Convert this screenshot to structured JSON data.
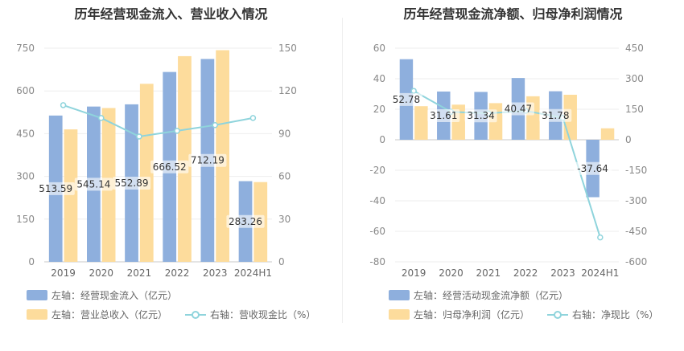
{
  "colors": {
    "bar1": "#8eafdd",
    "bar2": "#fddc9c",
    "line": "#8fd4dc",
    "axis_text": "#888888",
    "grid": "#eeeeee"
  },
  "chart_data": [
    {
      "type": "bar",
      "title": "历年经营现金流入、营业收入情况",
      "categories": [
        "2019",
        "2020",
        "2021",
        "2022",
        "2023",
        "2024H1"
      ],
      "left_axis": {
        "min": 0,
        "max": 750,
        "ticks": [
          0,
          150,
          300,
          450,
          600,
          750
        ]
      },
      "right_axis": {
        "min": 0,
        "max": 150,
        "ticks": [
          0,
          30,
          60,
          90,
          120,
          150
        ]
      },
      "series": [
        {
          "name": "左轴：经营现金流入（亿元）",
          "axis": "left",
          "kind": "bar",
          "values": [
            513.59,
            545.14,
            552.89,
            666.52,
            712.19,
            283.26
          ],
          "labels": [
            "513.59",
            "545.14",
            "552.89",
            "666.52",
            "712.19",
            "283.26"
          ]
        },
        {
          "name": "左轴：营业总收入（亿元）",
          "axis": "left",
          "kind": "bar",
          "values": [
            465,
            540,
            625,
            722,
            743,
            280
          ]
        },
        {
          "name": "右轴：营收现金比（%）",
          "axis": "right",
          "kind": "line",
          "values": [
            110,
            101,
            88,
            92,
            96,
            101
          ]
        }
      ],
      "legend": [
        {
          "label": "左轴：经营现金流入（亿元）",
          "kind": "bar",
          "color": "#8eafdd"
        },
        {
          "label": "左轴：营业总收入（亿元）",
          "kind": "bar",
          "color": "#fddc9c"
        },
        {
          "label": "右轴：营收现金比（%）",
          "kind": "line",
          "color": "#8fd4dc"
        }
      ]
    },
    {
      "type": "bar",
      "title": "历年经营现金流净额、归母净利润情况",
      "categories": [
        "2019",
        "2020",
        "2021",
        "2022",
        "2023",
        "2024H1"
      ],
      "left_axis": {
        "min": -80,
        "max": 60,
        "ticks": [
          -80,
          -60,
          -40,
          -20,
          0,
          20,
          40,
          60
        ]
      },
      "right_axis": {
        "min": -600,
        "max": 450,
        "ticks": [
          -600,
          -450,
          -300,
          -150,
          0,
          150,
          300,
          450
        ]
      },
      "series": [
        {
          "name": "左轴：经营活动现金流净额（亿元）",
          "axis": "left",
          "kind": "bar",
          "values": [
            52.78,
            31.61,
            31.34,
            40.47,
            31.78,
            -37.64
          ],
          "labels": [
            "52.78",
            "31.61",
            "31.34",
            "40.47",
            "31.78",
            "-37.64"
          ]
        },
        {
          "name": "左轴：归母净利润（亿元）",
          "axis": "left",
          "kind": "bar",
          "values": [
            22,
            23,
            24,
            28.5,
            29.5,
            7.5
          ]
        },
        {
          "name": "右轴：净现比（%）",
          "axis": "right",
          "kind": "line",
          "values": [
            240,
            137,
            130,
            142,
            108,
            -480
          ]
        }
      ],
      "legend": [
        {
          "label": "左轴：经营活动现金流净额（亿元）",
          "kind": "bar",
          "color": "#8eafdd"
        },
        {
          "label": "左轴：归母净利润（亿元）",
          "kind": "bar",
          "color": "#fddc9c"
        },
        {
          "label": "右轴：净现比（%）",
          "kind": "line",
          "color": "#8fd4dc"
        }
      ]
    }
  ]
}
